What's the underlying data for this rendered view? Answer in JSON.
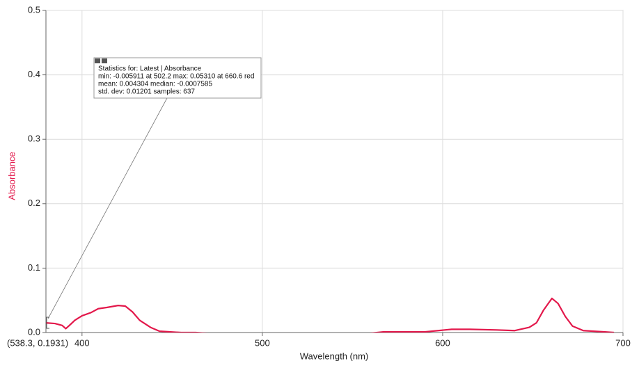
{
  "chart_data": {
    "type": "line",
    "x_label": "Wavelength (nm)",
    "y_label": "Absorbance",
    "x": [
      380,
      385,
      389,
      391,
      393,
      396,
      400,
      405,
      409,
      414,
      420,
      424,
      428,
      432,
      438,
      443,
      455,
      463,
      480,
      502,
      530,
      560,
      567,
      590,
      605,
      615,
      630,
      640,
      648,
      652,
      656,
      660.6,
      664,
      668,
      672,
      678,
      690,
      695
    ],
    "values": [
      0.015,
      0.014,
      0.011,
      0.006,
      0.011,
      0.019,
      0.026,
      0.031,
      0.037,
      0.039,
      0.042,
      0.041,
      0.032,
      0.019,
      0.008,
      0.002,
      0.0,
      0.0,
      -0.003,
      -0.006,
      -0.004,
      -0.001,
      0.001,
      0.001,
      0.005,
      0.005,
      0.004,
      0.003,
      0.008,
      0.015,
      0.035,
      0.053,
      0.045,
      0.025,
      0.01,
      0.003,
      0.001,
      0.0
    ],
    "color": "#e3184b",
    "xlim": [
      380,
      700
    ],
    "ylim": [
      0,
      0.5
    ],
    "xticks": [
      400,
      500,
      600,
      700
    ],
    "yticks": [
      {
        "value": 0,
        "label": "0.0"
      },
      0.1,
      0.2,
      0.3,
      0.4,
      0.5
    ],
    "grid": true,
    "annotations": [
      "Statistics for: Latest | Absorbance",
      "min: -0.005911 at 502.2 max: 0.05310 at 660.6 red",
      "mean: 0.004304 median: -0.0007585",
      "std. dev: 0.01201 samples: 637"
    ],
    "cursor_readout": "(538.3, 0.1931)"
  }
}
